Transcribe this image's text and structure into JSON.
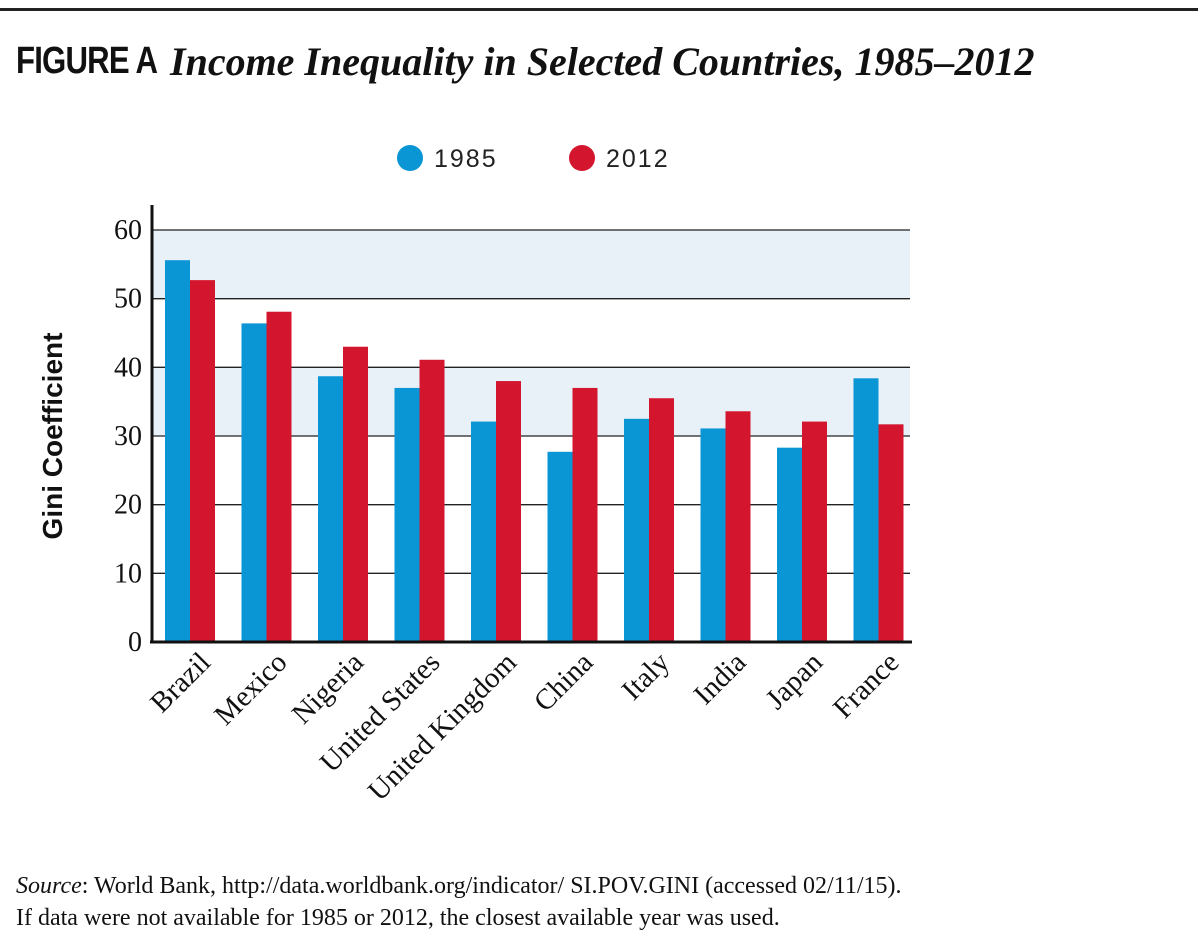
{
  "figure": {
    "label": "FIGURE A",
    "title": "Income Inequality in Selected Countries, 1985–2012"
  },
  "colors": {
    "series_1985": "#0a95d5",
    "series_2012": "#d3162e",
    "band": "#e8f0f8",
    "grid": "#222222"
  },
  "chart_data": {
    "type": "bar",
    "ylabel": "Gini Coefficient",
    "xlabel": "",
    "ylim": [
      0,
      60
    ],
    "yticks": [
      0,
      10,
      20,
      30,
      40,
      50,
      60
    ],
    "grid": true,
    "legend_position": "top-center",
    "categories": [
      "Brazil",
      "Mexico",
      "Nigeria",
      "United States",
      "United Kingdom",
      "China",
      "Italy",
      "India",
      "Japan",
      "France"
    ],
    "series": [
      {
        "name": "1985",
        "values": [
          55.6,
          46.4,
          38.7,
          37.0,
          32.1,
          27.7,
          32.5,
          31.1,
          28.3,
          38.4
        ]
      },
      {
        "name": "2012",
        "values": [
          52.7,
          48.1,
          43.0,
          41.1,
          38.0,
          37.0,
          35.5,
          33.6,
          32.1,
          31.7
        ]
      }
    ]
  },
  "source": {
    "label": "Source",
    "line1": ": World Bank, http://data.worldbank.org/indicator/ SI.POV.GINI (accessed 02/11/15).",
    "line2": "If data were not available for 1985 or 2012, the closest available year was used."
  }
}
